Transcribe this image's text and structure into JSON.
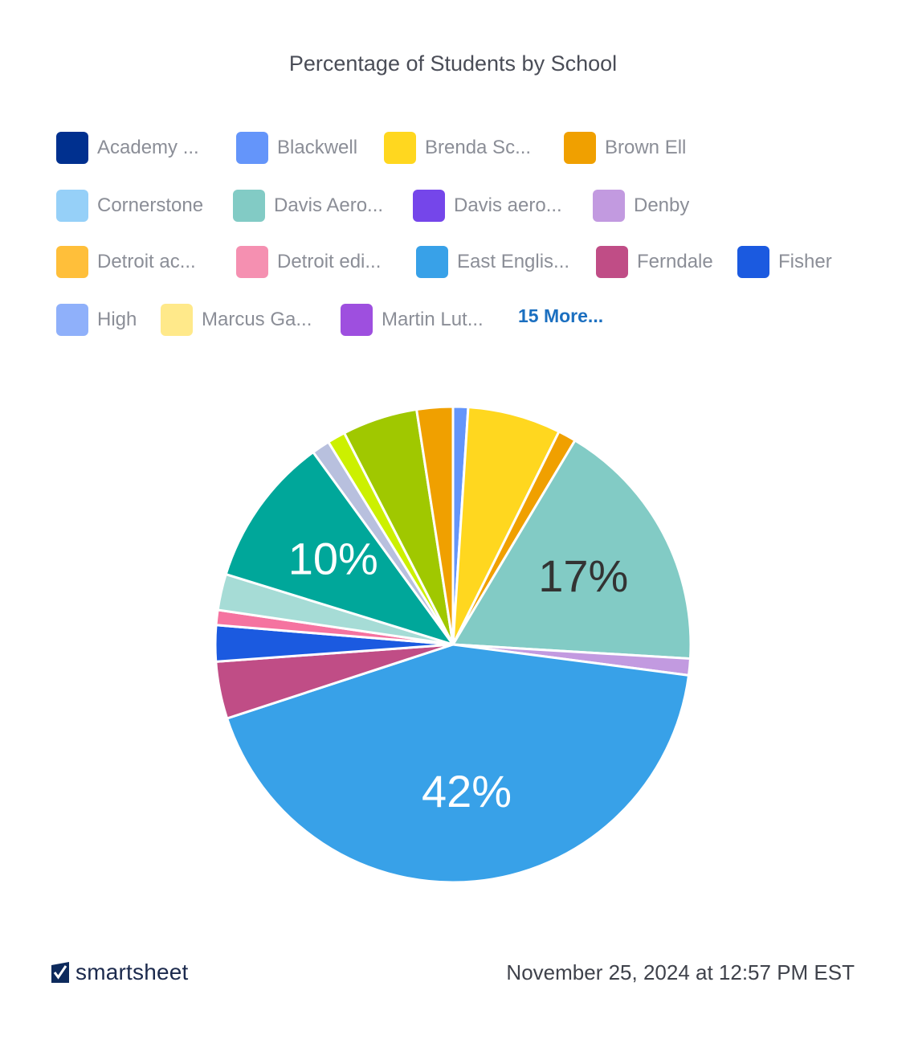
{
  "chart_data": {
    "type": "pie",
    "title": "Percentage of Students by School",
    "legend_position": "top",
    "legend": [
      {
        "label": "Academy ...",
        "color": "#00308f"
      },
      {
        "label": "Blackwell",
        "color": "#6495fa"
      },
      {
        "label": "Brenda Sc...",
        "color": "#ffd71f"
      },
      {
        "label": "Brown Ell",
        "color": "#f0a000"
      },
      {
        "label": "Cornerstone",
        "color": "#96d0f8"
      },
      {
        "label": "Davis Aero...",
        "color": "#82cbc5"
      },
      {
        "label": "Davis aero...",
        "color": "#7546ea"
      },
      {
        "label": "Denby",
        "color": "#c29ae0"
      },
      {
        "label": "Detroit ac...",
        "color": "#ffbf3a"
      },
      {
        "label": "Detroit edi...",
        "color": "#f590b1"
      },
      {
        "label": "East Englis...",
        "color": "#38a1e8"
      },
      {
        "label": "Ferndale",
        "color": "#c04d86"
      },
      {
        "label": "Fisher",
        "color": "#1b5ae0"
      },
      {
        "label": "High",
        "color": "#8fb0fa"
      },
      {
        "label": "Marcus Ga...",
        "color": "#ffe98a"
      },
      {
        "label": "Martin Lut...",
        "color": "#9e4fdf"
      }
    ],
    "more_label": "15 More...",
    "slices": [
      {
        "value": 1.0,
        "color": "#6495fa",
        "label": ""
      },
      {
        "value": 6.2,
        "color": "#ffd71f",
        "label": ""
      },
      {
        "value": 1.2,
        "color": "#f0a000",
        "label": ""
      },
      {
        "value": 17.0,
        "color": "#82cbc5",
        "label": "17%"
      },
      {
        "value": 1.1,
        "color": "#c29ae0",
        "label": ""
      },
      {
        "value": 42.0,
        "color": "#38a1e8",
        "label": "42%"
      },
      {
        "value": 3.8,
        "color": "#c04d86",
        "label": ""
      },
      {
        "value": 2.4,
        "color": "#1b5ae0",
        "label": ""
      },
      {
        "value": 1.0,
        "color": "#f573a0",
        "label": ""
      },
      {
        "value": 2.4,
        "color": "#a6dcd6",
        "label": ""
      },
      {
        "value": 10.0,
        "color": "#00a79a",
        "label": "10%"
      },
      {
        "value": 1.2,
        "color": "#b8c0de",
        "label": ""
      },
      {
        "value": 1.2,
        "color": "#ccf000",
        "label": ""
      },
      {
        "value": 5.0,
        "color": "#a0c800",
        "label": ""
      },
      {
        "value": 2.4,
        "color": "#f0a000",
        "label": ""
      }
    ]
  },
  "footer": {
    "brand": "smartsheet",
    "timestamp": "November 25, 2024 at 12:57 PM EST"
  }
}
